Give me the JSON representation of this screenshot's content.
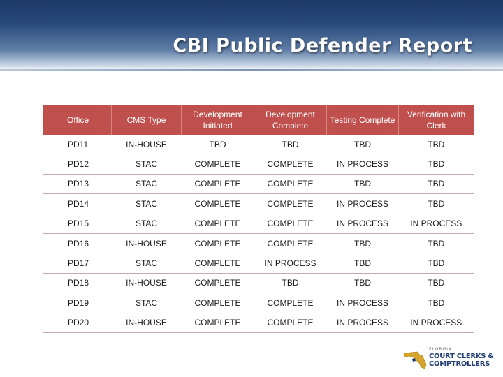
{
  "slide": {
    "title": "CBI Public Defender Report"
  },
  "table": {
    "headers": [
      "Office",
      "CMS Type",
      "Development Initiated",
      "Development Complete",
      "Testing Complete",
      "Verification with Clerk"
    ],
    "rows": [
      [
        "PD11",
        "IN-HOUSE",
        "TBD",
        "TBD",
        "TBD",
        "TBD"
      ],
      [
        "PD12",
        "STAC",
        "COMPLETE",
        "COMPLETE",
        "IN PROCESS",
        "TBD"
      ],
      [
        "PD13",
        "STAC",
        "COMPLETE",
        "COMPLETE",
        "TBD",
        "TBD"
      ],
      [
        "PD14",
        "STAC",
        "COMPLETE",
        "COMPLETE",
        "IN PROCESS",
        "TBD"
      ],
      [
        "PD15",
        "STAC",
        "COMPLETE",
        "COMPLETE",
        "IN PROCESS",
        "IN PROCESS"
      ],
      [
        "PD16",
        "IN-HOUSE",
        "COMPLETE",
        "COMPLETE",
        "TBD",
        "TBD"
      ],
      [
        "PD17",
        "STAC",
        "COMPLETE",
        "IN PROCESS",
        "TBD",
        "TBD"
      ],
      [
        "PD18",
        "IN-HOUSE",
        "COMPLETE",
        "TBD",
        "TBD",
        "TBD"
      ],
      [
        "PD19",
        "STAC",
        "COMPLETE",
        "COMPLETE",
        "IN PROCESS",
        "TBD"
      ],
      [
        "PD20",
        "IN-HOUSE",
        "COMPLETE",
        "COMPLETE",
        "IN PROCESS",
        "IN PROCESS"
      ]
    ]
  },
  "logo": {
    "line1": "FLORIDA",
    "line2": "COURT CLERKS &",
    "line3": "COMPTROLLERS"
  },
  "colors": {
    "header_fill": "#c0504d",
    "title_band": "#1c3866",
    "logo_gold": "#d4a52a",
    "logo_navy": "#1f3d73"
  }
}
